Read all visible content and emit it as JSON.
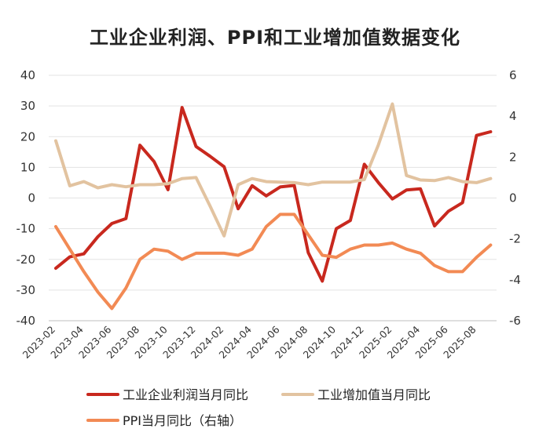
{
  "chart_data": {
    "type": "line",
    "title": "工业企业利润、PPI和工业增加值数据变化",
    "x": [
      "2023-02",
      "2023-03",
      "2023-04",
      "2023-05",
      "2023-06",
      "2023-07",
      "2023-08",
      "2023-09",
      "2023-10",
      "2023-11",
      "2023-12",
      "2024-01",
      "2024-02",
      "2024-03",
      "2024-04",
      "2024-05",
      "2024-06",
      "2024-07",
      "2024-08",
      "2024-09",
      "2024-10",
      "2024-11",
      "2024-12",
      "2025-01",
      "2025-02",
      "2025-03",
      "2025-04",
      "2025-05",
      "2025-06",
      "2025-07",
      "2025-08",
      "2025-09",
      "2025-10"
    ],
    "x_tick_labels": [
      "2023-02",
      "2023-04",
      "2023-06",
      "2023-08",
      "2023-10",
      "2023-12",
      "2024-02",
      "2024-04",
      "2024-06",
      "2024-08",
      "2024-10",
      "2024-12",
      "2025-02",
      "2025-04",
      "2025-06",
      "2025-08"
    ],
    "y_left": {
      "lim": [
        -40,
        40
      ],
      "ticks": [
        -40,
        -30,
        -20,
        -10,
        0,
        10,
        20,
        30,
        40
      ]
    },
    "y_right": {
      "lim": [
        -6,
        6
      ],
      "ticks": [
        -6,
        -4,
        -2,
        0,
        2,
        4,
        6
      ]
    },
    "grid": true,
    "legend_position": "bottom",
    "series": [
      {
        "name": "工业企业利润当月同比",
        "axis": "left",
        "color": "#c8281e",
        "values": [
          -22.9,
          -19.2,
          -18.2,
          -12.6,
          -8.3,
          -6.7,
          17.2,
          11.9,
          2.7,
          29.5,
          16.8,
          13.6,
          10.2,
          -3.5,
          4.0,
          0.7,
          3.6,
          4.1,
          -17.8,
          -27.1,
          -10.0,
          -7.3,
          11.0,
          5.0,
          -0.3,
          2.6,
          3.0,
          -9.1,
          -4.3,
          -1.5,
          20.4,
          21.6,
          null
        ]
      },
      {
        "name": "工业增加值当月同比",
        "axis": "right",
        "color": "#e2c3a0",
        "values": [
          2.8,
          0.6,
          0.8,
          0.5,
          0.65,
          0.55,
          0.65,
          0.65,
          0.7,
          0.95,
          1.0,
          -0.4,
          -1.85,
          0.65,
          0.95,
          0.8,
          0.78,
          0.75,
          0.65,
          0.78,
          0.78,
          0.78,
          0.9,
          2.6,
          4.6,
          1.1,
          0.88,
          0.85,
          1.0,
          0.8,
          0.75,
          0.95,
          null
        ]
      },
      {
        "name": "PPI当月同比（右轴）",
        "axis": "right",
        "color": "#f28a54",
        "values": [
          -1.4,
          -2.5,
          -3.6,
          -4.6,
          -5.4,
          -4.4,
          -3.0,
          -2.5,
          -2.6,
          -3.0,
          -2.7,
          -2.7,
          -2.7,
          -2.8,
          -2.5,
          -1.4,
          -0.8,
          -0.8,
          -1.8,
          -2.8,
          -2.9,
          -2.5,
          -2.3,
          -2.3,
          -2.2,
          -2.5,
          -2.7,
          -3.3,
          -3.6,
          -3.6,
          -2.9,
          -2.3,
          null
        ]
      }
    ]
  }
}
